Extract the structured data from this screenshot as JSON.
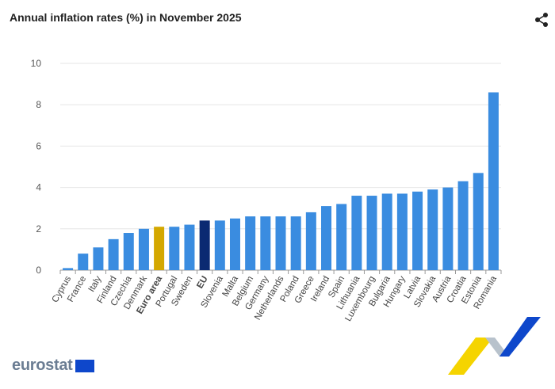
{
  "title": "Annual inflation rates (%) in November 2025",
  "logo_text": "eurostat",
  "icons": {
    "share": "share-icon"
  },
  "colors": {
    "country": "#3a8ce0",
    "euro_area": "#d4a800",
    "eu": "#0b2a72",
    "grid": "#e6e6e6"
  },
  "chart_data": {
    "type": "bar",
    "title": "Annual inflation rates (%) in November 2025",
    "ylim": [
      0,
      10
    ],
    "yticks": [
      0,
      2,
      4,
      6,
      8,
      10
    ],
    "grid": true,
    "categories": [
      "Cyprus",
      "France",
      "Italy",
      "Finland",
      "Czechia",
      "Denmark",
      "Euro area",
      "Portugal",
      "Sweden",
      "EU",
      "Slovenia",
      "Malta",
      "Belgium",
      "Germany",
      "Netherlands",
      "Poland",
      "Greece",
      "Ireland",
      "Spain",
      "Lithuania",
      "Luxembourg",
      "Bulgaria",
      "Hungary",
      "Latvia",
      "Slovakia",
      "Austria",
      "Croatia",
      "Estonia",
      "Romania"
    ],
    "values": [
      0.1,
      0.8,
      1.1,
      1.5,
      1.8,
      2.0,
      2.1,
      2.1,
      2.2,
      2.4,
      2.4,
      2.5,
      2.6,
      2.6,
      2.6,
      2.6,
      2.8,
      3.1,
      3.2,
      3.6,
      3.6,
      3.7,
      3.7,
      3.8,
      3.9,
      4.0,
      4.3,
      4.7,
      8.6
    ],
    "highlighted": {
      "Euro area": "euro_area",
      "EU": "eu"
    }
  }
}
